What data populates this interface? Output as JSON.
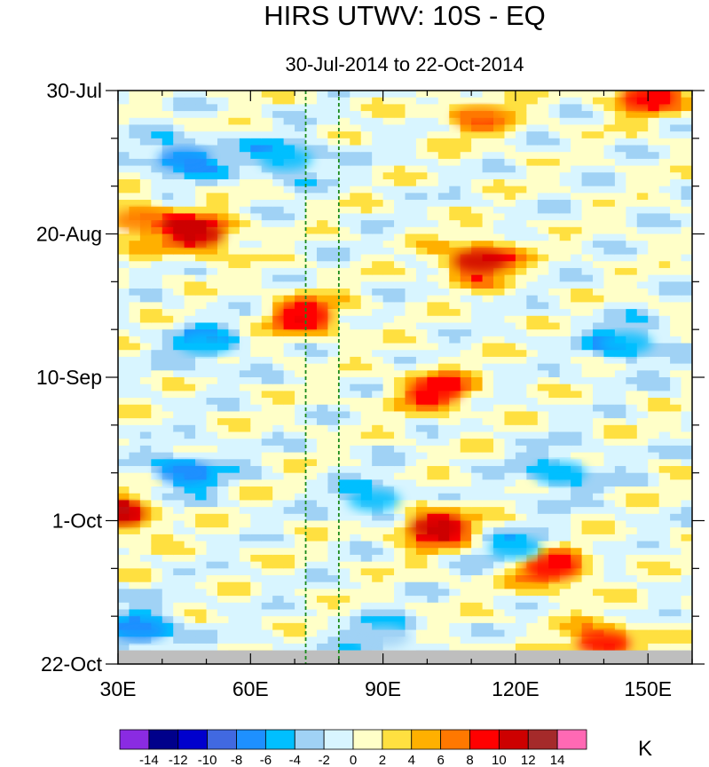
{
  "chart_data": {
    "type": "heatmap",
    "title": "HIRS UTWV: 10S - EQ",
    "subtitle": "30-Jul-2014 to 22-Oct-2014",
    "xlabel": "",
    "ylabel": "",
    "xlim": [
      30,
      160
    ],
    "ylim_days": [
      0,
      84
    ],
    "x_ticks": [
      {
        "value": 30,
        "label": "30E"
      },
      {
        "value": 60,
        "label": "60E"
      },
      {
        "value": 90,
        "label": "90E"
      },
      {
        "value": 120,
        "label": "120E"
      },
      {
        "value": 150,
        "label": "150E"
      }
    ],
    "y_ticks": [
      {
        "day": 0,
        "label": "30-Jul"
      },
      {
        "day": 21,
        "label": "20-Aug"
      },
      {
        "day": 42,
        "label": "10-Sep"
      },
      {
        "day": 63,
        "label": "1-Oct"
      },
      {
        "day": 84,
        "label": "22-Oct"
      }
    ],
    "reference_lines_lon": [
      72.5,
      80
    ],
    "missing_data_band_days": [
      82,
      84
    ],
    "colorbar": {
      "unit": "K",
      "levels": [
        -14,
        -12,
        -10,
        -8,
        -6,
        -4,
        -2,
        0,
        2,
        4,
        6,
        8,
        10,
        12,
        14
      ],
      "colors": [
        "#8a2be2",
        "#00008b",
        "#0000cd",
        "#4169e1",
        "#1e90ff",
        "#00bfff",
        "#a0d2f5",
        "#d8f5ff",
        "#ffffc8",
        "#ffe040",
        "#ffb000",
        "#ff7800",
        "#ff0000",
        "#cd0000",
        "#a52a2a",
        "#ff69b4"
      ]
    },
    "anomaly_features": [
      {
        "lon": 48,
        "day": 21,
        "value": 10
      },
      {
        "lon": 35,
        "day": 19,
        "value": 6
      },
      {
        "lon": 112,
        "day": 25,
        "value": 10
      },
      {
        "lon": 150,
        "day": 1,
        "value": 8
      },
      {
        "lon": 112,
        "day": 4,
        "value": 6
      },
      {
        "lon": 72,
        "day": 33,
        "value": 9
      },
      {
        "lon": 102,
        "day": 44,
        "value": 9
      },
      {
        "lon": 30,
        "day": 62,
        "value": 10
      },
      {
        "lon": 102,
        "day": 64,
        "value": 11
      },
      {
        "lon": 128,
        "day": 70,
        "value": 9
      },
      {
        "lon": 140,
        "day": 81,
        "value": 8
      },
      {
        "lon": 45,
        "day": 10,
        "value": -7
      },
      {
        "lon": 68,
        "day": 10,
        "value": -6
      },
      {
        "lon": 50,
        "day": 37,
        "value": -6
      },
      {
        "lon": 145,
        "day": 37,
        "value": -6
      },
      {
        "lon": 45,
        "day": 56,
        "value": -7
      },
      {
        "lon": 88,
        "day": 60,
        "value": -5
      },
      {
        "lon": 130,
        "day": 56,
        "value": -5
      },
      {
        "lon": 120,
        "day": 67,
        "value": -5
      },
      {
        "lon": 35,
        "day": 79,
        "value": -7
      },
      {
        "lon": 90,
        "day": 80,
        "value": -4
      }
    ]
  }
}
